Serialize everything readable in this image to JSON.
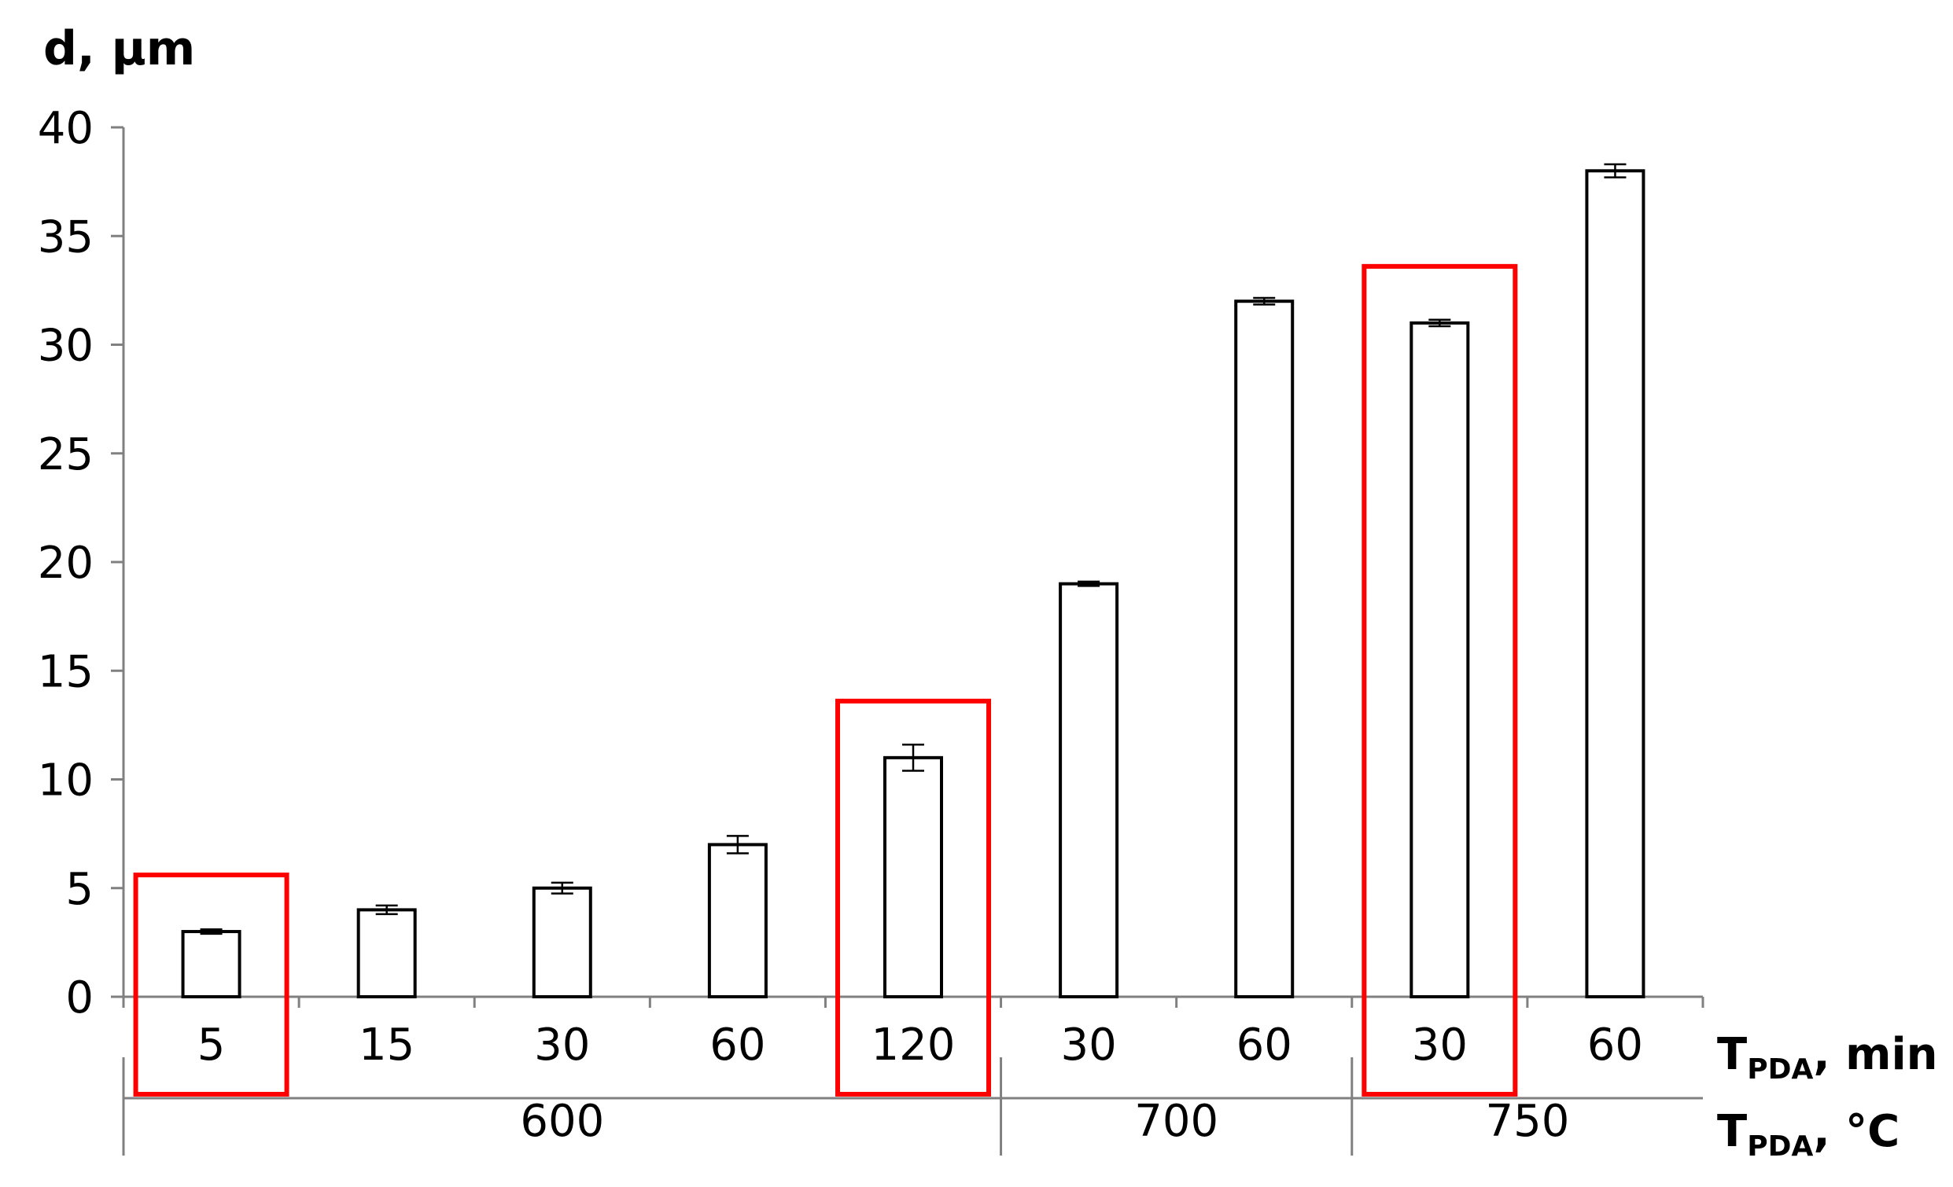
{
  "chart_data": {
    "type": "bar",
    "ylabel": "d, μm",
    "ylim": [
      0,
      40
    ],
    "yticks": [
      0,
      5,
      10,
      15,
      20,
      25,
      30,
      35,
      40
    ],
    "categories": [
      "5",
      "15",
      "30",
      "60",
      "120",
      "30",
      "60",
      "30",
      "60"
    ],
    "values": [
      3,
      4,
      5,
      7,
      11,
      19,
      32,
      31,
      38
    ],
    "errors": [
      0.1,
      0.2,
      0.25,
      0.4,
      0.6,
      0.1,
      0.15,
      0.15,
      0.3
    ],
    "groups": [
      {
        "label": "600",
        "start": 0,
        "end": 4
      },
      {
        "label": "700",
        "start": 5,
        "end": 6
      },
      {
        "label": "750",
        "start": 7,
        "end": 8
      }
    ],
    "highlighted": [
      0,
      4,
      7
    ],
    "bar_fill": "#ffffff",
    "bar_stroke": "#000000",
    "highlight_color": "#ff0000",
    "x_axis_title": {
      "main": "T",
      "sub": "PDA",
      "suffix": ", min"
    },
    "group_axis_title": {
      "main": "T",
      "sub": "PDA",
      "suffix": ", °C"
    },
    "grid": false
  }
}
